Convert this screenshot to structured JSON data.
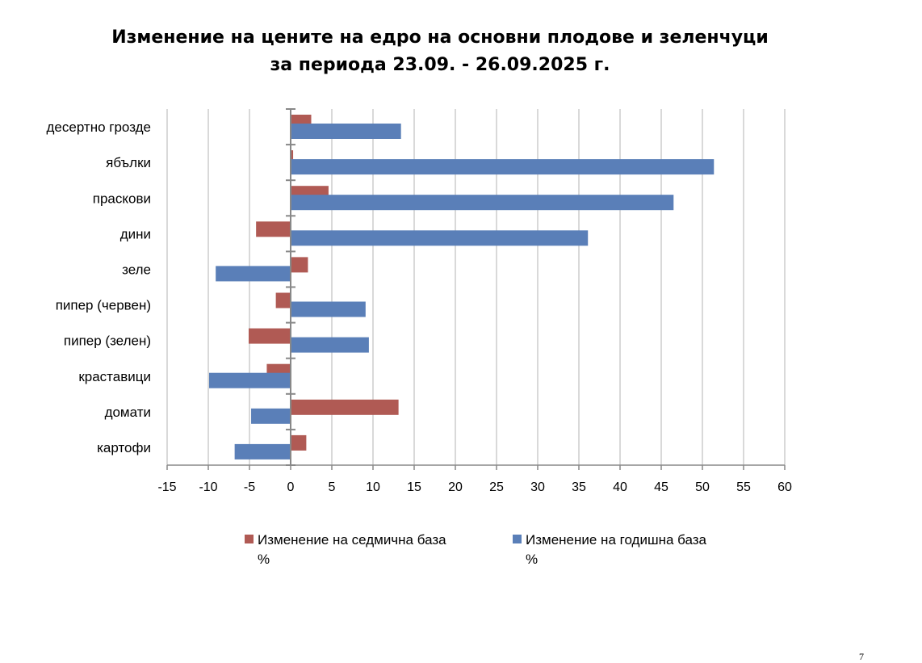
{
  "chart_data": {
    "type": "bar",
    "orientation": "horizontal",
    "title": "Изменение на цените на едро на основни плодове и зеленчуци",
    "subtitle": "за периода 23.09. - 26.09.2025 г.",
    "categories": [
      "десертно грозде",
      "ябълки",
      "праскови",
      "дини",
      "зеле",
      "пипер (червен)",
      "пипер (зелен)",
      "краставици",
      "домати",
      "картофи"
    ],
    "series": [
      {
        "name": "Изменение на седмична база",
        "unit": "%",
        "color": "#B05A54",
        "values": [
          2.5,
          0.3,
          4.6,
          -4.2,
          2.1,
          -1.8,
          -5.1,
          -2.9,
          13.1,
          1.9
        ]
      },
      {
        "name": "Изменение на годишна база",
        "unit": "%",
        "color": "#5A7FB8",
        "values": [
          13.4,
          51.4,
          46.5,
          36.1,
          -9.1,
          9.1,
          9.5,
          -9.9,
          -4.8,
          -6.8
        ]
      }
    ],
    "xlim": [
      -15,
      60
    ],
    "xticks": [
      "-15",
      "-10",
      "-5",
      "0",
      "5",
      "10",
      "15",
      "20",
      "25",
      "30",
      "35",
      "40",
      "45",
      "50",
      "55",
      "60"
    ],
    "grid": true,
    "legend": "bottom"
  },
  "page_number": "7"
}
